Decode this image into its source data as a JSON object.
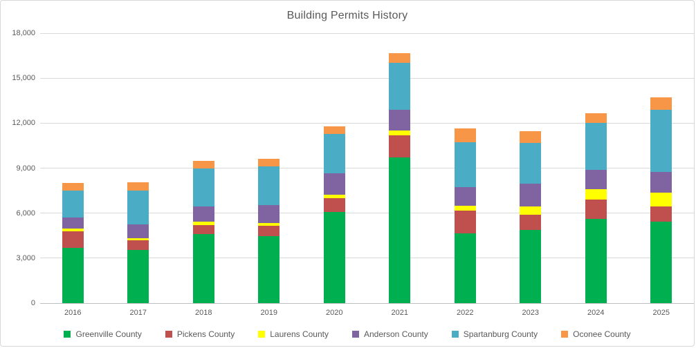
{
  "title": "Building Permits History",
  "chart_data": {
    "type": "bar",
    "stacked": true,
    "title": "Building Permits History",
    "xlabel": "",
    "ylabel": "",
    "ylim": [
      0,
      18000
    ],
    "ytick_step": 3000,
    "grid": true,
    "legend_position": "bottom",
    "categories": [
      "2016",
      "2017",
      "2018",
      "2019",
      "2020",
      "2021",
      "2022",
      "2023",
      "2024",
      "2025"
    ],
    "series": [
      {
        "name": "Greenville County",
        "color": "#00B050",
        "values": [
          3700,
          3550,
          4600,
          4450,
          6100,
          9700,
          4650,
          4900,
          5600,
          5450
        ]
      },
      {
        "name": "Pickens County",
        "color": "#C0504D",
        "values": [
          1100,
          650,
          600,
          700,
          900,
          1500,
          1500,
          1000,
          1300,
          1000
        ]
      },
      {
        "name": "Laurens County",
        "color": "#FFFF00",
        "values": [
          150,
          150,
          250,
          200,
          250,
          300,
          350,
          550,
          700,
          900
        ]
      },
      {
        "name": "Anderson County",
        "color": "#8064A2",
        "values": [
          750,
          900,
          1000,
          1200,
          1400,
          1400,
          1250,
          1500,
          1300,
          1400
        ]
      },
      {
        "name": "Spartanburg County",
        "color": "#4BACC6",
        "values": [
          1800,
          2250,
          2550,
          2550,
          2650,
          3100,
          3000,
          2750,
          3100,
          4150
        ]
      },
      {
        "name": "Oconee County",
        "color": "#F79646",
        "values": [
          500,
          550,
          500,
          500,
          500,
          650,
          900,
          750,
          650,
          800
        ]
      }
    ],
    "totals": [
      8000,
      8050,
      9500,
      9600,
      11800,
      16650,
      11650,
      11450,
      12650,
      13700
    ]
  },
  "colors": {
    "gridline": "#d9d9d9",
    "axis_line": "#bfbfbf",
    "tick_text": "#595959",
    "title_text": "#595959"
  }
}
